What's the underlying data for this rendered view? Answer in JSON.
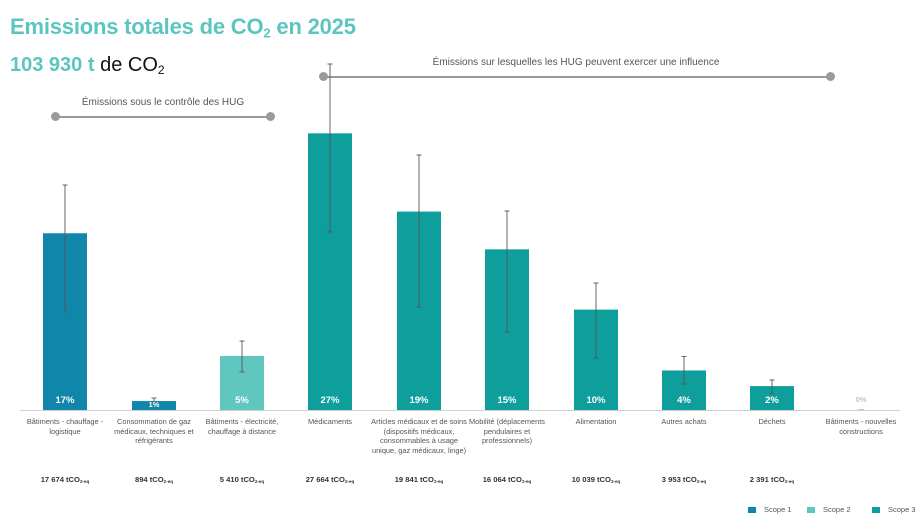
{
  "title_parts": {
    "main": "Emissions totales de CO",
    "sub": "2",
    "suffix": " en 2025"
  },
  "total": {
    "value": "103 930 t",
    "text": " de CO",
    "sub": "2"
  },
  "brackets": [
    {
      "label": "Émissions sous le contrôle des HUG"
    },
    {
      "label": "Émissions sur lesquelles les HUG peuvent exercer une influence"
    }
  ],
  "unit": {
    "prefix": "tCO",
    "sub": "2-eq"
  },
  "colors": {
    "scope1": "#0f86aa",
    "scope2": "#5fc6c0",
    "scope3": "#0e9f9c",
    "zero": "#c8c8c8",
    "bracket": "#9a9a9a"
  },
  "chart_data": {
    "type": "bar",
    "title": "Emissions totales de CO2 en 2025",
    "xlabel": "",
    "ylabel": "",
    "categories": [
      "Bâtiments - chauffage - logistique",
      "Consommation de gaz médicaux, techniques et réfrigérants",
      "Bâtiments - électricité, chauffage à distance",
      "Médicaments",
      "Articles médicaux et de soins (dispositifs médicaux, consommables à usage unique, gaz médicaux, linge)",
      "Mobilité (déplacements pendulaires et professionnels)",
      "Alimentation",
      "Autres achats",
      "Déchets",
      "Bâtiments - nouvelles constructions"
    ],
    "values": [
      17674,
      894,
      5410,
      27664,
      19841,
      16064,
      10039,
      3953,
      2391,
      0
    ],
    "value_labels": [
      "17 674",
      "894",
      "5 410",
      "27 664",
      "19 841",
      "16 064",
      "10 039",
      "3 953",
      "2 391",
      ""
    ],
    "percent_labels": [
      "17%",
      "1%",
      "5%",
      "27%",
      "19%",
      "15%",
      "10%",
      "4%",
      "2%",
      "0%"
    ],
    "scopes": [
      1,
      1,
      2,
      3,
      3,
      3,
      3,
      3,
      3,
      3
    ],
    "error_low": [
      9800,
      700,
      3800,
      17800,
      10300,
      7800,
      5200,
      2600,
      1600,
      0
    ],
    "error_high": [
      22500,
      1200,
      6900,
      34600,
      25500,
      19900,
      12700,
      5350,
      3000,
      0
    ],
    "ylim": [
      0,
      35000
    ],
    "grid": false,
    "legend": [
      "Scope 1",
      "Scope 2",
      "Scope 3"
    ],
    "legend_position": "bottom-right"
  }
}
